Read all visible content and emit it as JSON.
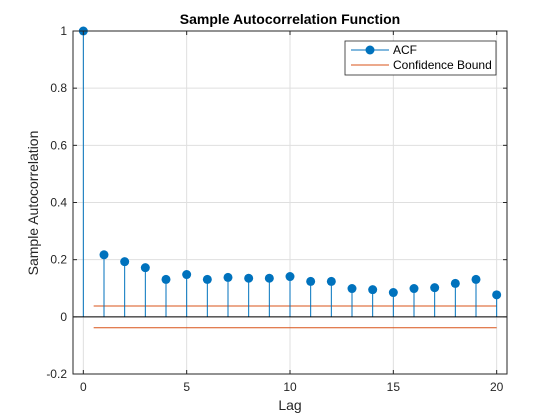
{
  "chart_data": {
    "type": "stem",
    "title": "Sample Autocorrelation Function",
    "xlabel": "Lag",
    "ylabel": "Sample Autocorrelation",
    "xlim": [
      -0.5,
      20.5
    ],
    "ylim": [
      -0.2,
      1
    ],
    "xticks": [
      0,
      5,
      10,
      15,
      20
    ],
    "yticks": [
      -0.2,
      0,
      0.2,
      0.4,
      0.6,
      0.8,
      1
    ],
    "ytick_labels": [
      "-0.2",
      "0",
      "0.2",
      "0.4",
      "0.6",
      "0.8",
      "1"
    ],
    "grid": true,
    "legend_position": "top-right",
    "series": [
      {
        "name": "ACF",
        "color": "#0072BD",
        "x": [
          0,
          1,
          2,
          3,
          4,
          5,
          6,
          7,
          8,
          9,
          10,
          11,
          12,
          13,
          14,
          15,
          16,
          17,
          18,
          19,
          20
        ],
        "values": [
          1,
          0.217,
          0.193,
          0.172,
          0.131,
          0.148,
          0.131,
          0.138,
          0.135,
          0.135,
          0.141,
          0.124,
          0.124,
          0.099,
          0.095,
          0.085,
          0.099,
          0.102,
          0.117,
          0.131,
          0.077
        ]
      },
      {
        "name": "Confidence Bound",
        "color": "#D95319",
        "x_range": [
          0.5,
          20
        ],
        "upper": 0.038,
        "lower": -0.038
      }
    ]
  }
}
